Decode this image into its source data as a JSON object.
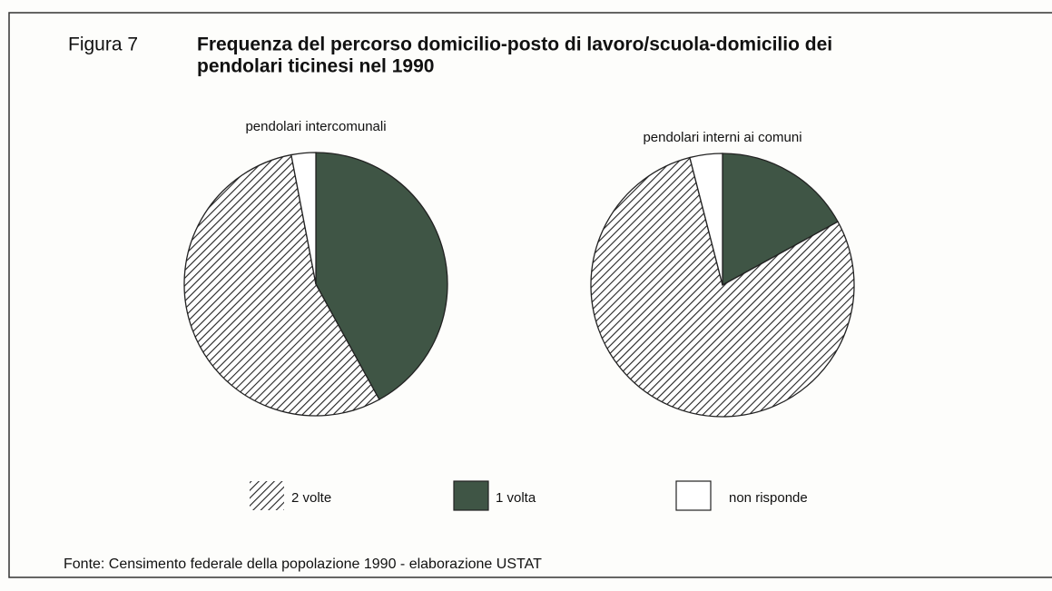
{
  "figure_label": "Figura 7",
  "title": [
    "Frequenza del percorso domicilio-posto di lavoro/scuola-domicilio dei",
    "pendolari ticinesi nel 1990"
  ],
  "source": "Fonte: Censimento federale della popolazione 1990 - elaborazione USTAT",
  "chart_data": [
    {
      "type": "pie",
      "title": "pendolari intercomunali",
      "categories": [
        "2 volte",
        "1 volta",
        "non risponde"
      ],
      "values": [
        55,
        42,
        3
      ],
      "colors": [
        "#222222",
        "#3f5545",
        "#ffffff"
      ],
      "fills": [
        "hatch",
        "solid",
        "solid"
      ]
    },
    {
      "type": "pie",
      "title": "pendolari interni ai comuni",
      "categories": [
        "2 volte",
        "1 volta",
        "non risponde"
      ],
      "values": [
        79,
        17,
        4
      ],
      "colors": [
        "#222222",
        "#3f5545",
        "#ffffff"
      ],
      "fills": [
        "hatch",
        "solid",
        "solid"
      ]
    }
  ]
}
